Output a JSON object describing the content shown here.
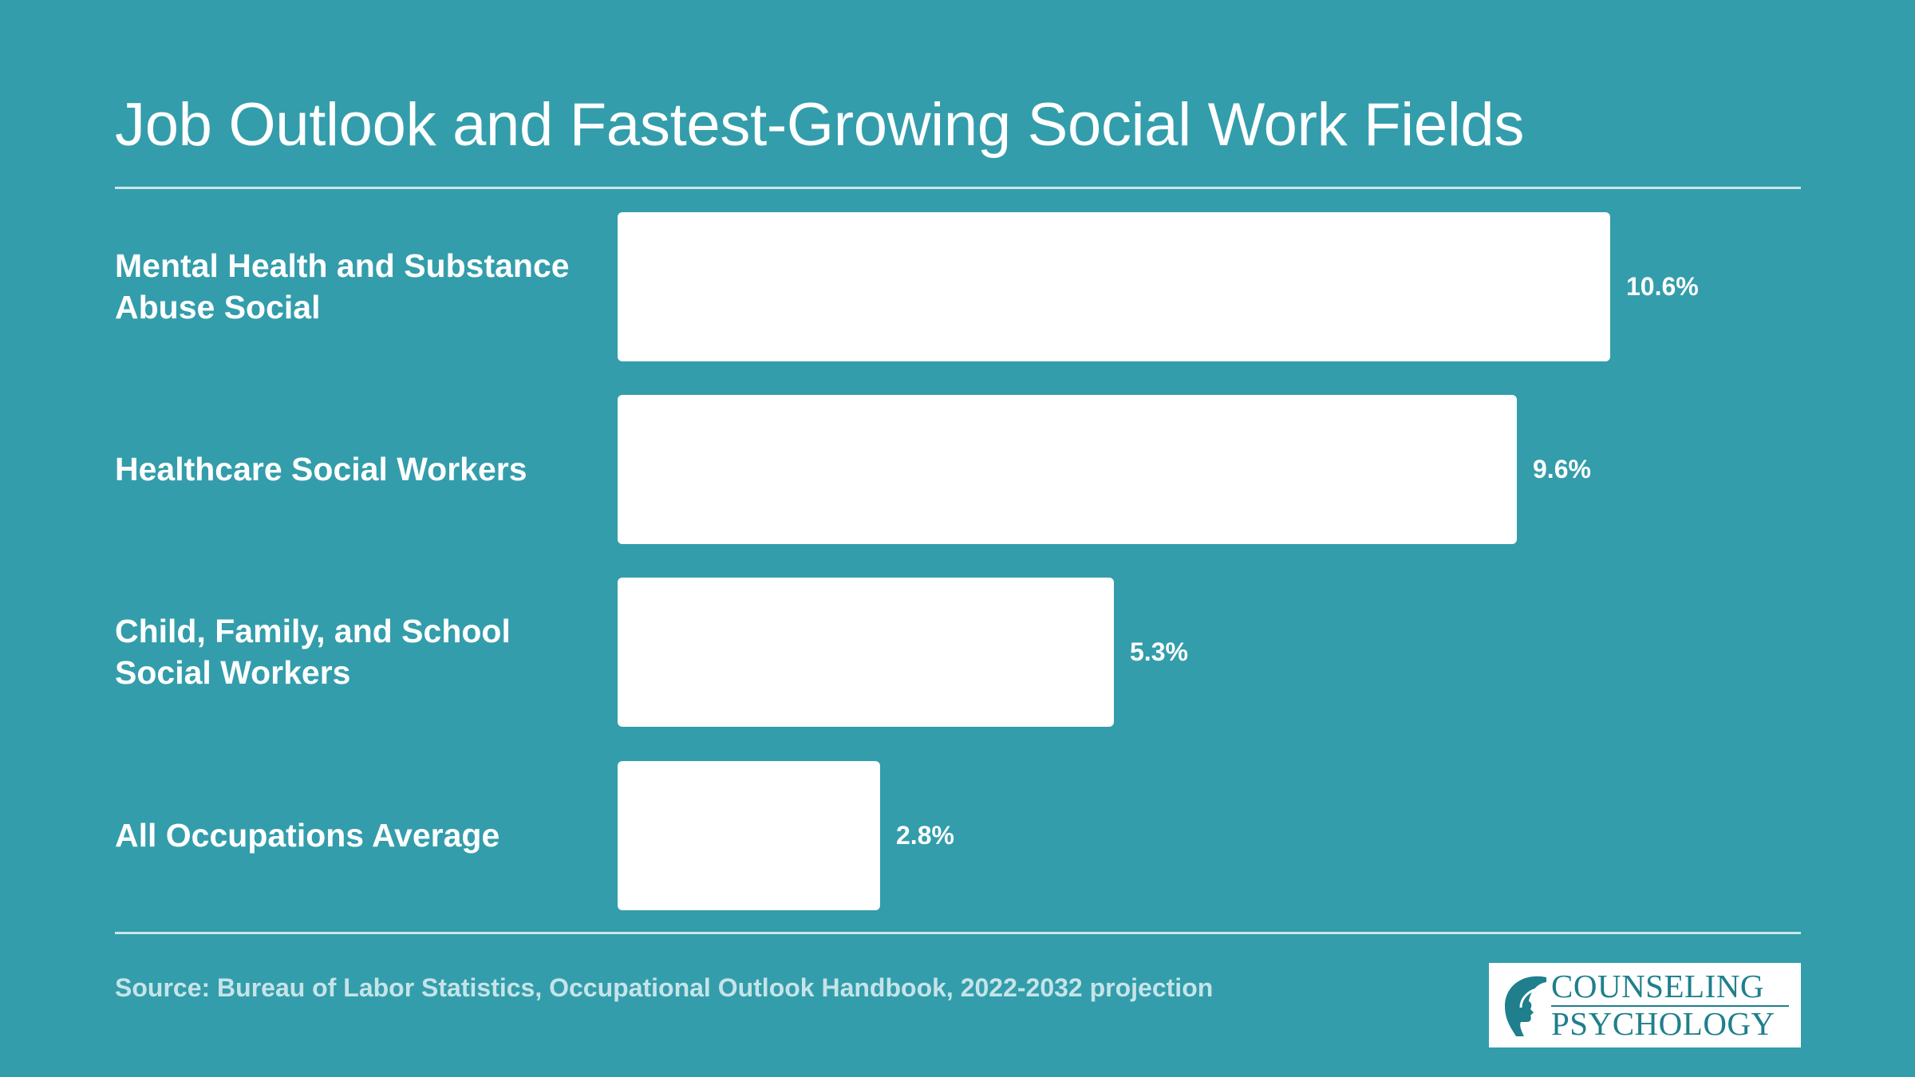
{
  "title": "Job Outlook and Fastest-Growing Social Work Fields",
  "source": "Source: Bureau of Labor Statistics, Occupational Outlook Handbook, 2022-2032 projection",
  "logo": {
    "line1": "COUNSELING",
    "line2": "PSYCHOLOGY",
    "icon": "head-profile-icon"
  },
  "colors": {
    "background": "#339DAB",
    "bar": "#FFFFFF",
    "text": "#FFFFFF",
    "logo_text": "#1F7F8C"
  },
  "chart_data": {
    "type": "bar",
    "orientation": "horizontal",
    "title": "Job Outlook and Fastest-Growing Social Work Fields",
    "categories": [
      "Mental Health and Substance Abuse Social",
      "Healthcare Social Workers",
      "Child, Family, and School Social Workers",
      "All Occupations Average"
    ],
    "values": [
      10.6,
      9.6,
      5.3,
      2.8
    ],
    "value_labels": [
      "10.6%",
      "9.6%",
      "5.3%",
      "2.8%"
    ],
    "unit": "%",
    "xlim": [
      0,
      10.6
    ],
    "grid": false,
    "legend": "none"
  }
}
